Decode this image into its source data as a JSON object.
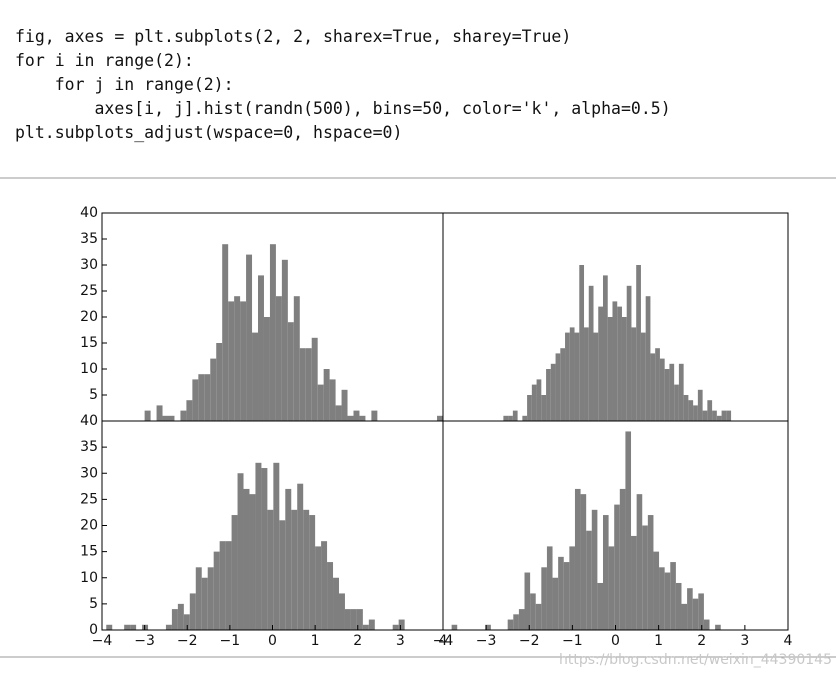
{
  "code_lines": [
    "fig, axes = plt.subplots(2, 2, sharex=True, sharey=True)",
    "for i in range(2):",
    "    for j in range(2):",
    "        axes[i, j].hist(randn(500), bins=50, color='k', alpha=0.5)",
    "plt.subplots_adjust(wspace=0, hspace=0)"
  ],
  "watermark": "https://blog.csdn.net/weixin_44390145",
  "chart_data": [
    {
      "type": "histogram",
      "color": "#7f7f7f",
      "xlim": [
        -4,
        4
      ],
      "ylim": [
        0,
        40
      ],
      "yticks": [
        5,
        10,
        15,
        20,
        25,
        30,
        35,
        40
      ],
      "bins": [
        -3,
        -2.86,
        -2.72,
        -2.58,
        -2.44,
        -2.3,
        -2.16,
        -2.02,
        -1.88,
        -1.74,
        -1.6,
        -1.46,
        -1.32,
        -1.18,
        -1.04,
        -0.9,
        -0.76,
        -0.62,
        -0.48,
        -0.34,
        -0.2,
        -0.06,
        0.08,
        0.22,
        0.36,
        0.5,
        0.64,
        0.78,
        0.92,
        1.06,
        1.2,
        1.34,
        1.48,
        1.62,
        1.76,
        1.9,
        2.04,
        2.18,
        2.32,
        2.46,
        2.6,
        2.74,
        2.88,
        3.02,
        3.16,
        3.3,
        3.44,
        3.58,
        3.72,
        3.86,
        4.0
      ],
      "values": [
        2,
        0,
        3,
        1,
        1,
        0,
        2,
        4,
        8,
        9,
        9,
        12,
        15,
        34,
        23,
        24,
        23,
        32,
        17,
        28,
        20,
        34,
        24,
        31,
        19,
        24,
        14,
        14,
        16,
        7,
        10,
        8,
        3,
        6,
        1,
        2,
        1,
        0,
        2,
        0,
        0,
        0,
        0,
        0,
        0,
        0,
        0,
        0,
        0,
        1
      ]
    },
    {
      "type": "histogram",
      "color": "#7f7f7f",
      "xlim": [
        -4,
        4
      ],
      "ylim": [
        0,
        40
      ],
      "bins": [
        -2.6,
        -2.49,
        -2.38,
        -2.27,
        -2.16,
        -2.05,
        -1.94,
        -1.83,
        -1.72,
        -1.61,
        -1.5,
        -1.39,
        -1.28,
        -1.17,
        -1.06,
        -0.95,
        -0.84,
        -0.73,
        -0.62,
        -0.51,
        -0.4,
        -0.29,
        -0.18,
        -0.07,
        0.04,
        0.15,
        0.26,
        0.37,
        0.48,
        0.59,
        0.7,
        0.81,
        0.92,
        1.03,
        1.14,
        1.25,
        1.36,
        1.47,
        1.58,
        1.69,
        1.8,
        1.91,
        2.02,
        2.13,
        2.24,
        2.35,
        2.46,
        2.57,
        2.68,
        2.79,
        2.9
      ],
      "values": [
        1,
        1,
        2,
        0,
        1,
        5,
        7,
        8,
        5,
        10,
        11,
        13,
        14,
        17,
        18,
        17,
        30,
        18,
        26,
        17,
        22,
        28,
        20,
        23,
        22,
        20,
        26,
        18,
        30,
        17,
        24,
        13,
        14,
        12,
        10,
        11,
        7,
        11,
        5,
        4,
        3,
        6,
        2,
        4,
        2,
        1,
        2,
        2,
        0,
        0
      ]
    },
    {
      "type": "histogram",
      "color": "#7f7f7f",
      "xlim": [
        -4,
        4
      ],
      "ylim": [
        0,
        40
      ],
      "yticks": [
        0,
        5,
        10,
        15,
        20,
        25,
        30,
        35,
        40
      ],
      "xticks": [
        {
          "value": -4,
          "label": "−4"
        },
        {
          "value": -3,
          "label": "−3"
        },
        {
          "value": -2,
          "label": "−2"
        },
        {
          "value": -1,
          "label": "−1"
        },
        0,
        1,
        2,
        3,
        4
      ],
      "bins": [
        -3.9,
        -3.76,
        -3.62,
        -3.48,
        -3.34,
        -3.2,
        -3.06,
        -2.92,
        -2.78,
        -2.64,
        -2.5,
        -2.36,
        -2.22,
        -2.08,
        -1.94,
        -1.8,
        -1.66,
        -1.52,
        -1.38,
        -1.24,
        -1.1,
        -0.96,
        -0.82,
        -0.68,
        -0.54,
        -0.4,
        -0.26,
        -0.12,
        0.02,
        0.16,
        0.3,
        0.44,
        0.58,
        0.72,
        0.86,
        1.0,
        1.14,
        1.28,
        1.42,
        1.56,
        1.7,
        1.84,
        1.98,
        2.12,
        2.26,
        2.4,
        2.54,
        2.68,
        2.82,
        2.96,
        3.1
      ],
      "values": [
        1,
        0,
        0,
        1,
        1,
        0,
        1,
        0,
        0,
        0,
        1,
        4,
        5,
        3,
        7,
        12,
        10,
        12,
        15,
        17,
        17,
        22,
        30,
        27,
        26,
        32,
        31,
        23,
        32,
        21,
        27,
        23,
        28,
        23,
        22,
        16,
        17,
        13,
        10,
        7,
        4,
        4,
        4,
        1,
        2,
        0,
        0,
        0,
        1,
        2
      ]
    },
    {
      "type": "histogram",
      "color": "#7f7f7f",
      "xlim": [
        -4,
        4
      ],
      "ylim": [
        0,
        40
      ],
      "xticks": [
        {
          "value": -4,
          "label": "−4"
        },
        {
          "value": -3,
          "label": "−3"
        },
        {
          "value": -2,
          "label": "−2"
        },
        {
          "value": -1,
          "label": "−1"
        },
        0,
        1,
        2,
        3,
        4
      ],
      "bins": [
        -3.8,
        -3.67,
        -3.54,
        -3.41,
        -3.28,
        -3.15,
        -3.02,
        -2.89,
        -2.76,
        -2.63,
        -2.5,
        -2.37,
        -2.24,
        -2.11,
        -1.98,
        -1.85,
        -1.72,
        -1.59,
        -1.46,
        -1.33,
        -1.2,
        -1.07,
        -0.94,
        -0.81,
        -0.68,
        -0.55,
        -0.42,
        -0.29,
        -0.16,
        -0.03,
        0.1,
        0.23,
        0.36,
        0.49,
        0.62,
        0.75,
        0.88,
        1.01,
        1.14,
        1.27,
        1.4,
        1.53,
        1.66,
        1.79,
        1.92,
        2.05,
        2.18,
        2.31,
        2.44,
        2.57,
        2.7
      ],
      "values": [
        1,
        0,
        0,
        0,
        0,
        0,
        1,
        0,
        0,
        0,
        2,
        3,
        4,
        11,
        7,
        5,
        12,
        16,
        10,
        14,
        13,
        16,
        27,
        26,
        19,
        23,
        9,
        22,
        16,
        24,
        27,
        38,
        18,
        26,
        20,
        22,
        15,
        12,
        11,
        13,
        9,
        5,
        8,
        6,
        7,
        2,
        0,
        1,
        0,
        0
      ]
    }
  ]
}
